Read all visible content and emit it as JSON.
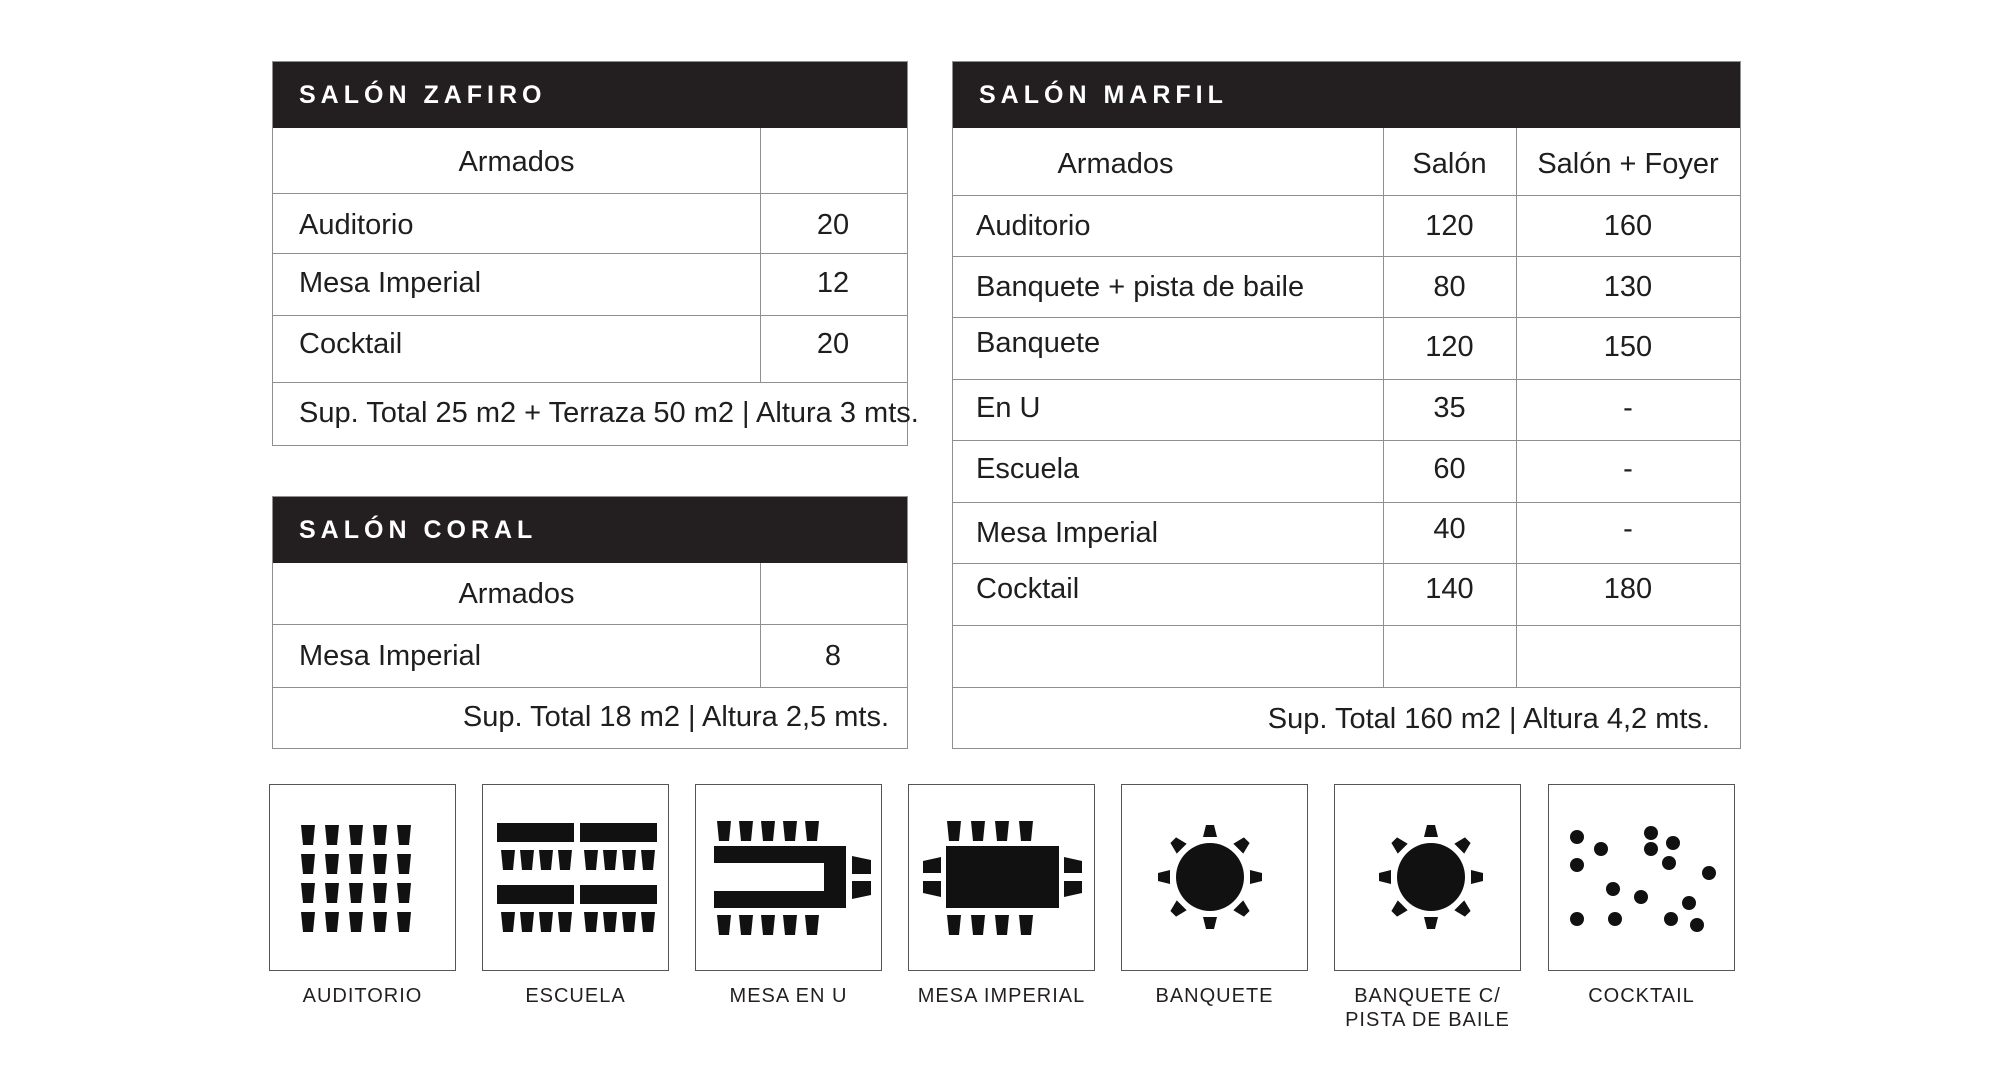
{
  "zafiro": {
    "title": "SALÓN ZAFIRO",
    "col_header": "Armados",
    "rows": [
      {
        "label": "Auditorio",
        "value": "20"
      },
      {
        "label": "Mesa Imperial",
        "value": "12"
      },
      {
        "label": "Cocktail",
        "value": "20"
      }
    ],
    "footer": "Sup. Total 25 m2 + Terraza 50 m2 | Altura 3 mts."
  },
  "coral": {
    "title": "SALÓN CORAL",
    "col_header": "Armados",
    "rows": [
      {
        "label": "Mesa Imperial",
        "value": "8"
      }
    ],
    "footer": "Sup. Total 18 m2 | Altura 2,5 mts."
  },
  "marfil": {
    "title": "SALÓN MARFIL",
    "headers": [
      "Armados",
      "Salón",
      "Salón + Foyer"
    ],
    "rows": [
      {
        "label": "Auditorio",
        "salon": "120",
        "foyer": "160"
      },
      {
        "label": "Banquete + pista de baile",
        "salon": "80",
        "foyer": "130"
      },
      {
        "label": "Banquete",
        "salon": "120",
        "foyer": "150"
      },
      {
        "label": "En U",
        "salon": "35",
        "foyer": "-"
      },
      {
        "label": "Escuela",
        "salon": "60",
        "foyer": "-"
      },
      {
        "label": "Mesa Imperial",
        "salon": "40",
        "foyer": "-"
      },
      {
        "label": "Cocktail",
        "salon": "140",
        "foyer": "180"
      }
    ],
    "footer": "Sup. Total 160 m2 | Altura 4,2 mts."
  },
  "layouts": [
    {
      "icon": "auditorium-layout-icon",
      "label": "AUDITORIO"
    },
    {
      "icon": "classroom-layout-icon",
      "label": "ESCUELA"
    },
    {
      "icon": "u-shape-layout-icon",
      "label": "MESA EN U"
    },
    {
      "icon": "boardroom-layout-icon",
      "label": "MESA IMPERIAL"
    },
    {
      "icon": "banquet-layout-icon",
      "label": "BANQUETE"
    },
    {
      "icon": "banquet-dance-floor-layout-icon",
      "label_line1": "BANQUETE C/",
      "label_line2": "PISTA DE BAILE"
    },
    {
      "icon": "cocktail-layout-icon",
      "label": "COCKTAIL"
    }
  ],
  "colors": {
    "header_bg": "#231f20",
    "text": "#1e1e1e",
    "border": "#8f8f8f"
  }
}
